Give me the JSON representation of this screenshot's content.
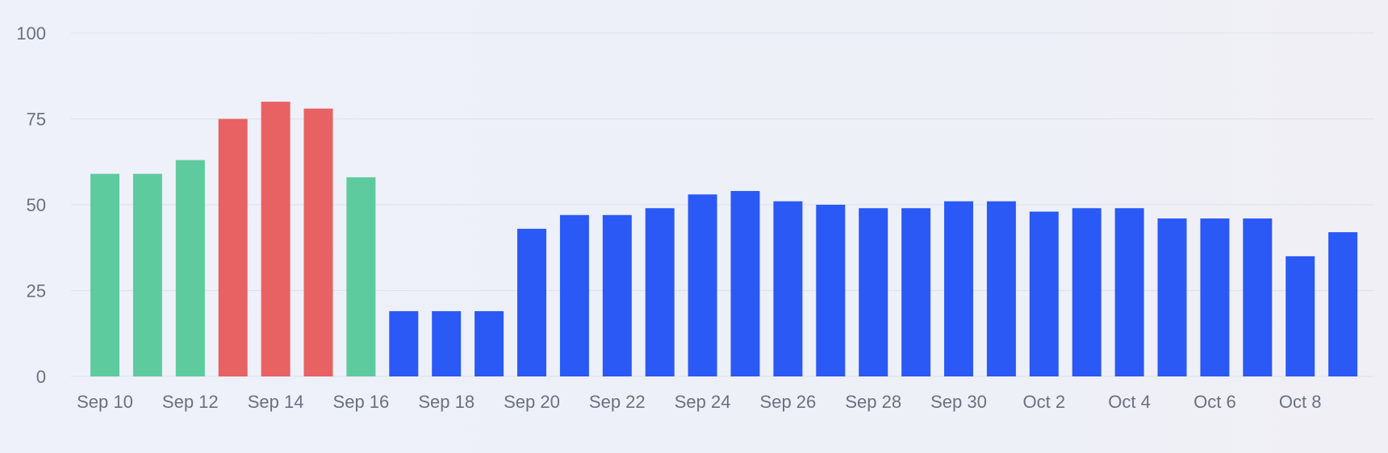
{
  "chart_data": {
    "type": "bar",
    "title": "",
    "xlabel": "",
    "ylabel": "",
    "ylim": [
      0,
      100
    ],
    "yticks": [
      0,
      25,
      50,
      75,
      100
    ],
    "grid": true,
    "categories": [
      "Sep 10",
      "Sep 11",
      "Sep 12",
      "Sep 13",
      "Sep 14",
      "Sep 15",
      "Sep 16",
      "Sep 17",
      "Sep 18",
      "Sep 19",
      "Sep 20",
      "Sep 21",
      "Sep 22",
      "Sep 23",
      "Sep 24",
      "Sep 25",
      "Sep 26",
      "Sep 27",
      "Sep 28",
      "Sep 29",
      "Sep 30",
      "Oct 1",
      "Oct 2",
      "Oct 3",
      "Oct 4",
      "Oct 5",
      "Oct 6",
      "Oct 7",
      "Oct 8",
      "Oct 9"
    ],
    "x_tick_labels": [
      "Sep 10",
      "Sep 12",
      "Sep 14",
      "Sep 16",
      "Sep 18",
      "Sep 20",
      "Sep 22",
      "Sep 24",
      "Sep 26",
      "Sep 28",
      "Sep 30",
      "Oct 2",
      "Oct 4",
      "Oct 6",
      "Oct 8"
    ],
    "values": [
      59,
      59,
      63,
      75,
      80,
      78,
      58,
      19,
      19,
      19,
      43,
      47,
      47,
      49,
      53,
      54,
      51,
      50,
      49,
      49,
      51,
      51,
      48,
      49,
      49,
      46,
      46,
      46,
      35,
      42
    ],
    "bar_colors": [
      "green",
      "green",
      "green",
      "red",
      "red",
      "red",
      "green",
      "blue",
      "blue",
      "blue",
      "blue",
      "blue",
      "blue",
      "blue",
      "blue",
      "blue",
      "blue",
      "blue",
      "blue",
      "blue",
      "blue",
      "blue",
      "blue",
      "blue",
      "blue",
      "blue",
      "blue",
      "blue",
      "blue",
      "blue"
    ]
  },
  "colors": {
    "green": "#5ecb9e",
    "red": "#e86163",
    "blue": "#2b59f5",
    "axis_text": "#6b7081",
    "grid": "#dfe2ea"
  }
}
